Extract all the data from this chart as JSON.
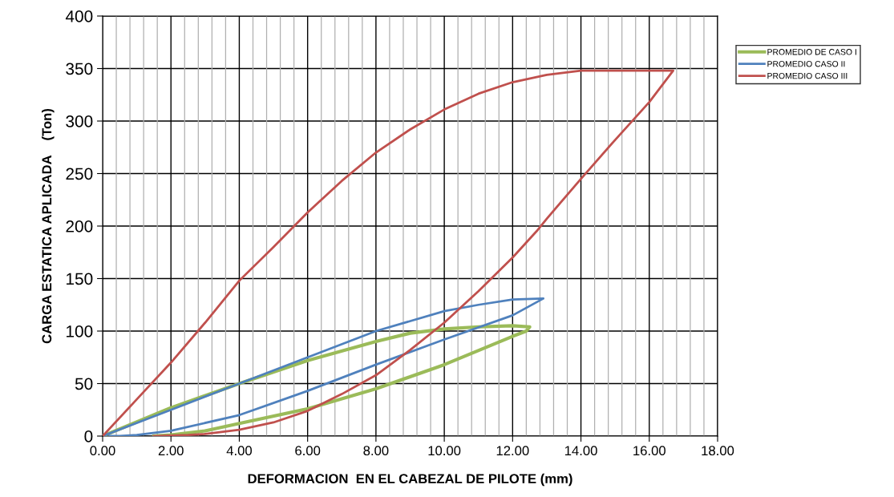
{
  "chart_data": {
    "type": "line",
    "xlabel": "DEFORMACION  EN EL CABEZAL DE PILOTE (mm)",
    "ylabel": "CARGA ESTATICA APLICADA    (Ton)",
    "xlim": [
      0,
      18
    ],
    "ylim": [
      0,
      400
    ],
    "xticks": [
      {
        "value": 0,
        "label": "0.00"
      },
      {
        "value": 2,
        "label": "2.00"
      },
      {
        "value": 4,
        "label": "4.00"
      },
      {
        "value": 6,
        "label": "6.00"
      },
      {
        "value": 8,
        "label": "8.00"
      },
      {
        "value": 10,
        "label": "10.00"
      },
      {
        "value": 12,
        "label": "12.00"
      },
      {
        "value": 14,
        "label": "14.00"
      },
      {
        "value": 16,
        "label": "16.00"
      },
      {
        "value": 18,
        "label": "18.00"
      }
    ],
    "yticks": [
      0,
      50,
      100,
      150,
      200,
      250,
      300,
      350,
      400
    ],
    "grid": true,
    "legend": "top right",
    "marker": "none",
    "line_style": "solid",
    "series": [
      {
        "name": "PROMEDIO DE CASO I",
        "color": "#9bbb59",
        "x": [
          0,
          2,
          4,
          6,
          8,
          9,
          10,
          11,
          12,
          12.5,
          12.4,
          12,
          10,
          8,
          6,
          4,
          3,
          2,
          1.5
        ],
        "values": [
          0,
          27,
          50,
          72,
          90,
          98,
          102,
          104,
          105,
          104,
          100,
          95,
          68,
          45,
          26,
          12,
          5,
          1,
          0
        ]
      },
      {
        "name": "PROMEDIO CASO II",
        "color": "#4f81bd",
        "x": [
          0,
          2,
          4,
          6,
          8,
          10,
          11,
          12,
          12.9,
          12,
          10,
          8,
          6,
          4,
          2,
          1,
          0.5,
          0.2
        ],
        "values": [
          0,
          25,
          50,
          75,
          100,
          119,
          125,
          130,
          131,
          115,
          92,
          68,
          43,
          20,
          5,
          1,
          0,
          0
        ]
      },
      {
        "name": "PROMEDIO CASO III",
        "color": "#c0504d",
        "x": [
          0,
          1,
          2,
          3,
          4,
          5,
          6,
          7,
          8,
          9,
          10,
          11,
          12,
          13,
          14,
          16.7,
          16,
          15,
          14,
          13,
          12.7,
          12,
          11,
          10,
          9,
          8,
          7,
          6,
          5,
          4,
          3,
          2.5,
          1.5
        ],
        "values": [
          0,
          35,
          70,
          108,
          148,
          180,
          213,
          243,
          270,
          292,
          311,
          326,
          337,
          344,
          348,
          348,
          318,
          282,
          245,
          207,
          195,
          170,
          138,
          108,
          82,
          58,
          40,
          24,
          13,
          6,
          2,
          1,
          0
        ]
      }
    ]
  }
}
